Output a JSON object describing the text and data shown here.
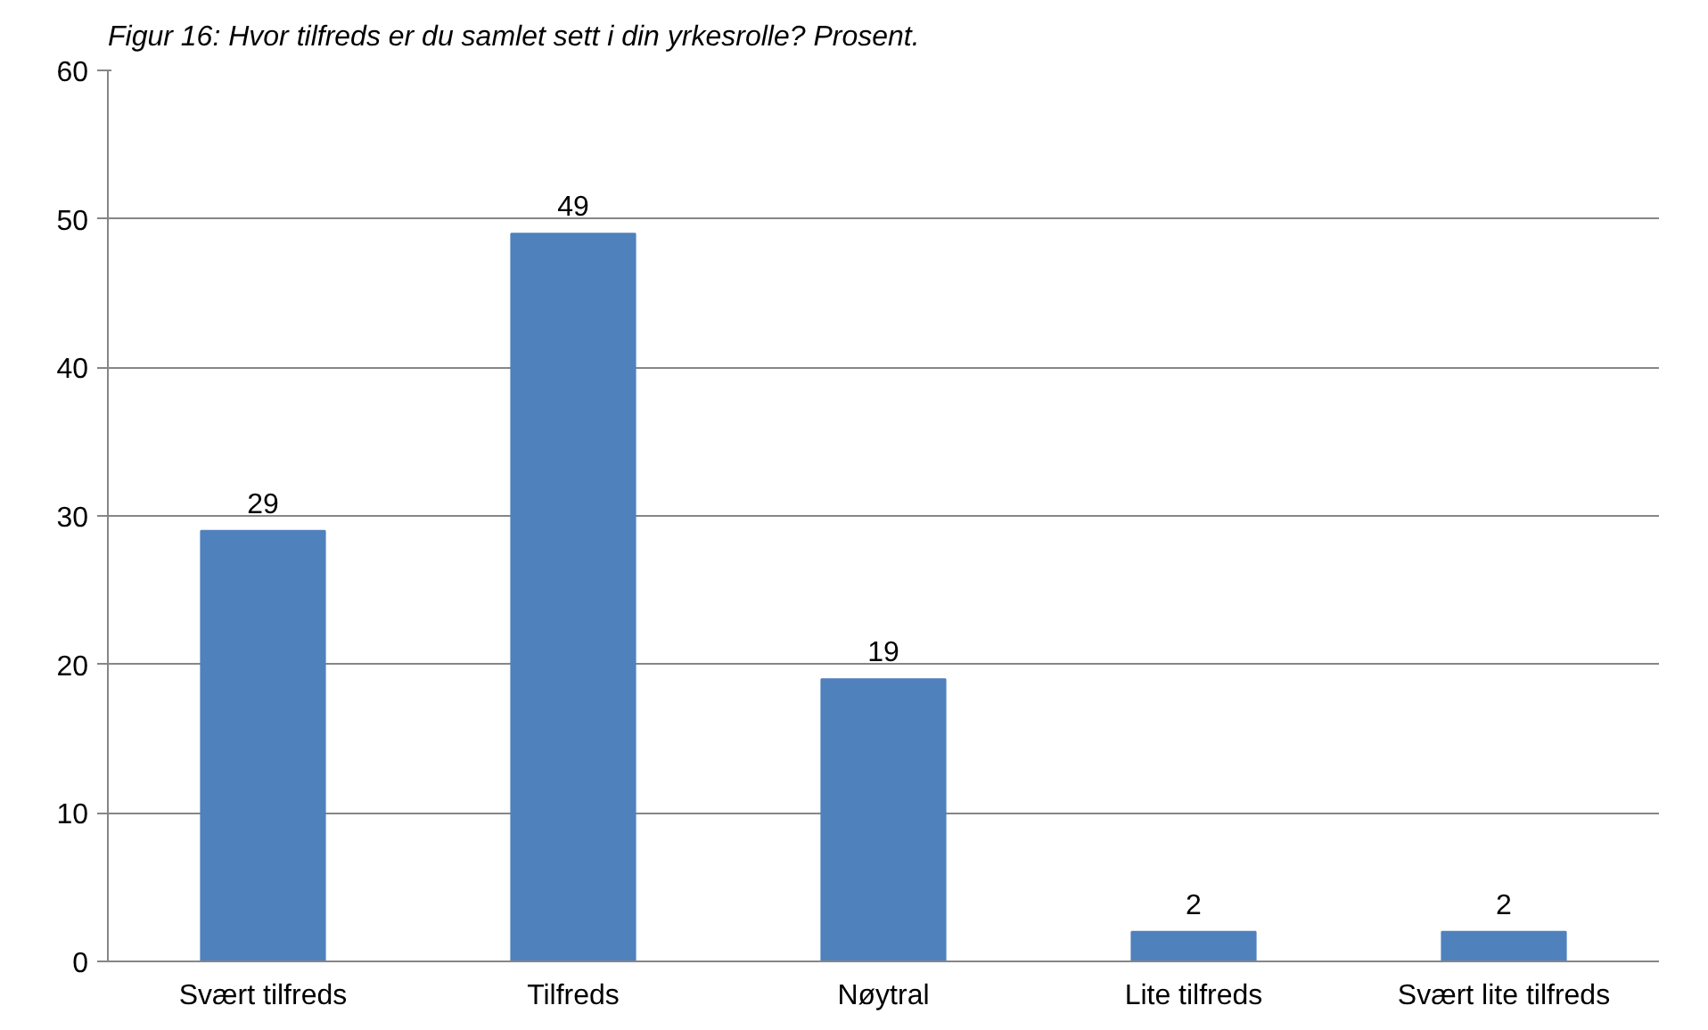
{
  "chart_data": {
    "type": "bar",
    "title": "Figur 16: Hvor tilfreds er du samlet sett i din yrkesrolle? Prosent.",
    "categories": [
      "Svært tilfreds",
      "Tilfreds",
      "Nøytral",
      "Lite tilfreds",
      "Svært lite tilfreds"
    ],
    "values": [
      29,
      49,
      19,
      2,
      2
    ],
    "color": "#4f81bd",
    "ylim": [
      0,
      60
    ],
    "yticks": [
      0,
      10,
      20,
      30,
      40,
      50,
      60
    ],
    "grid": "y",
    "data_labels": true
  }
}
